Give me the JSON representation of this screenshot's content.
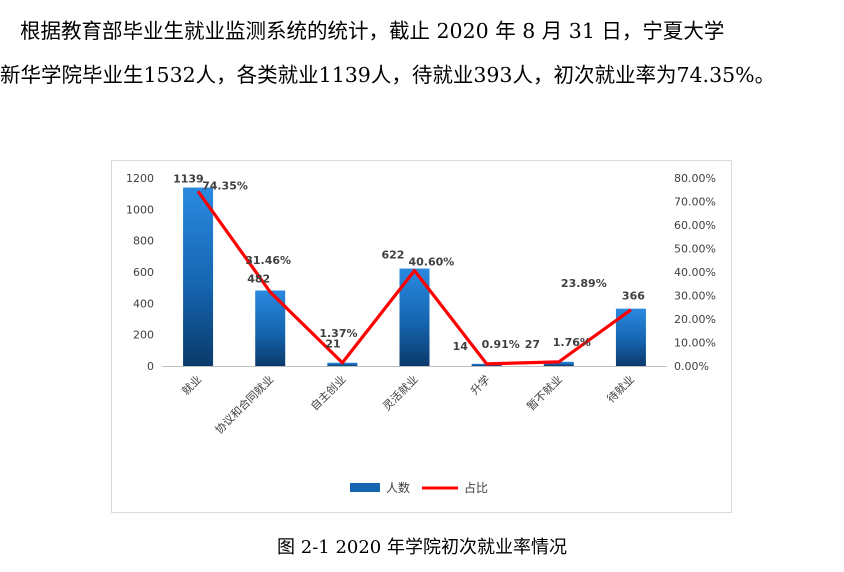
{
  "text": {
    "paragraph_line1": "根据教育部毕业生就业监测系统的统计，截止 2020 年 8 月 31 日，宁夏大学",
    "paragraph_line2": "新华学院毕业生1532人，各类就业1139人，待就业393人，初次就业率为74.35%。",
    "caption": "图 2-1    2020 年学院初次就业率情况"
  },
  "chart_data": {
    "type": "bar+line",
    "categories": [
      "就业",
      "协议和合同就业",
      "自主创业",
      "灵活就业",
      "升学",
      "暂不就业",
      "待就业"
    ],
    "series": [
      {
        "name": "人数",
        "type": "bar",
        "axis": "left",
        "values": [
          1139,
          482,
          21,
          622,
          14,
          27,
          366
        ],
        "color": "#1f77c9"
      },
      {
        "name": "占比",
        "type": "line",
        "axis": "right",
        "values": [
          74.35,
          31.46,
          1.37,
          40.6,
          0.91,
          1.76,
          23.89
        ],
        "color": "#ff0000"
      }
    ],
    "bar_labels": [
      "1139",
      "482",
      "21",
      "622",
      "14",
      "27",
      "366"
    ],
    "line_labels": [
      "74.35%",
      "31.46%",
      "1.37%",
      "40.60%",
      "0.91%",
      "1.76%",
      "23.89%"
    ],
    "y_left": {
      "ticks": [
        0,
        200,
        400,
        600,
        800,
        1000,
        1200
      ],
      "ylim": [
        0,
        1200
      ]
    },
    "y_right": {
      "ticks": [
        "0.00%",
        "10.00%",
        "20.00%",
        "30.00%",
        "40.00%",
        "50.00%",
        "60.00%",
        "70.00%",
        "80.00%"
      ],
      "ylim": [
        0,
        80
      ]
    },
    "legend": {
      "position": "bottom",
      "items": [
        "人数",
        "占比"
      ]
    },
    "grid": false
  }
}
